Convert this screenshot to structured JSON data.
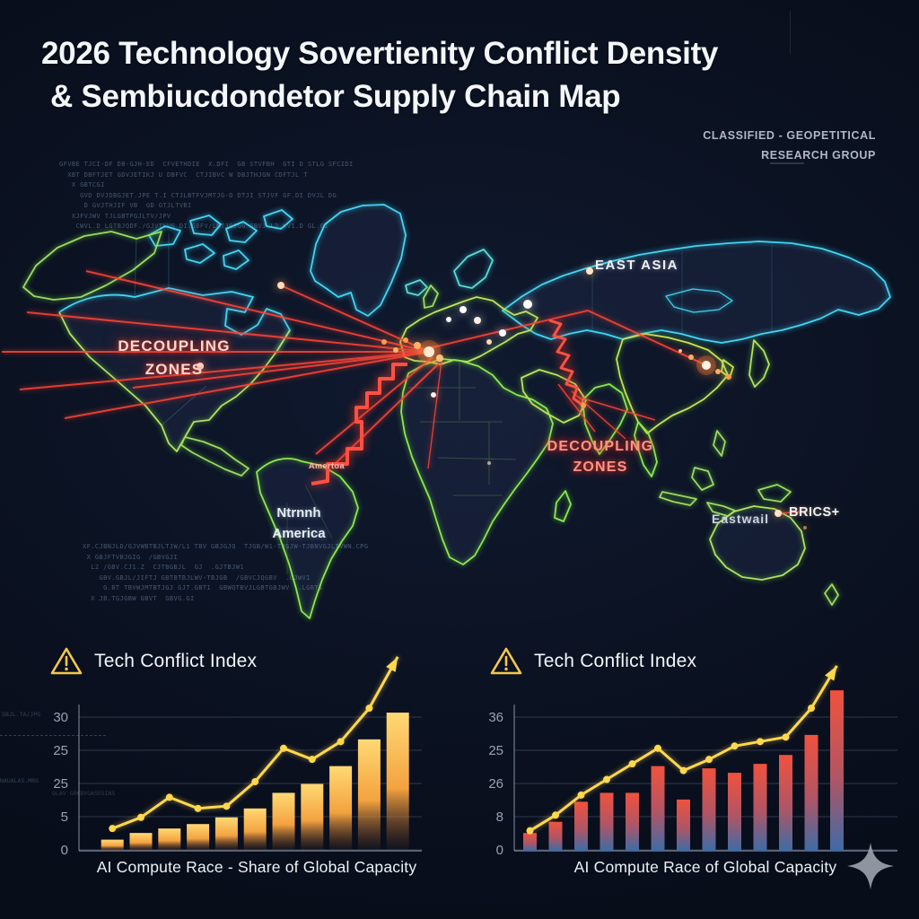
{
  "header": {
    "title_line1": "2026 Technology Sovertienity Conflict Density",
    "title_line2": "& Sembiucdondetor Supply Chain Map",
    "classification_line1": "CLASSIFIED - GEOPETITICAL",
    "classification_line2": "RESEARCH GROUP"
  },
  "map": {
    "labels": {
      "decoupling_west": {
        "line1": "DECOUPLING",
        "line2": "ZONES"
      },
      "decoupling_east": {
        "line1": "DECOUPLING",
        "line2": "ZONES"
      },
      "east_asia": {
        "line1": "EAST ASIA"
      },
      "brics": {
        "line1": "BRICS+"
      },
      "australia": {
        "line1": "Eastwail"
      },
      "south_america": {
        "line1": "Ntrnnh",
        "line2": "America"
      },
      "south_america_alt": {
        "line1": "Amertoa"
      }
    },
    "glitch_text_top": [
      "GFVBE TJCI-DF DB-GJH-ED  CFVETHDIE  X.DFI  GB STVFBH  GTI D STLG SFCIDI",
      "  XBT DBFTJET GDVJETIKJ U DBFVC  CTJIBVC W DBJTHJGN CDFTJL T",
      "   X GBTCGI",
      "     GVD DVJDBGJET.JPE T.I CTJLBTFVJMTJG-D DTJI STJVF GF.DI DVJL DG",
      "      D GVJTHJIF VB  GD GTJLTVBI",
      "",
      "   XJFVJWV TJLGBTFGJLTV/JPV",
      "    CWVL.D LGTBJQDF./GJVTLVG DI.GBFV/LMTJGJGG GBVJ.L2.WV1.D GL.GI"
    ],
    "glitch_text_bottom": [
      "XF.CJBNJLD/GJVWBTBJLTJW/L1 TBV GBJGJQ  TJGB/W1-TJGJW-TJBNVGJLTVWN.CPG",
      " X GBJFTVBJGIG  /GBVGJI",
      "  L2 /GBV.CJ1.Z  CJTBGBJL  GJ  .GJTBJW1",
      "    GBV.GBJL/JIFTJ GBTBTBJLWV-TBJGB  /GBVCJQGBV  .GJWV1",
      "     G.BT TBVWJMTBTJGJ GJT.GBT1  GBWQTBVJLGBTGBJWV  .LGBT1",
      "  X JB.TGJGBW GBVT  GBVG.GI"
    ],
    "glitch_text_side_a": "SBJL.TA/JPG",
    "glitch_text_side_b": "NAUALAS.MRS",
    "glitch_text_chart": "QLAV GRKBVGASESINS"
  },
  "chart_data": [
    {
      "type": "bar",
      "title": "Tech Conflict Index",
      "xlabel": "AI Compute Race - Share of Global Capacity",
      "icon": "warning-triangle",
      "ytick_labels": [
        "30",
        "25",
        "25",
        "5",
        "0"
      ],
      "ylim": [
        0,
        36
      ],
      "grid": true,
      "legend": null,
      "bar_values": [
        2.5,
        4,
        5,
        6,
        7.5,
        9.5,
        13,
        15,
        19,
        25,
        31
      ],
      "line_values": [
        5,
        7.5,
        12,
        9.5,
        10,
        15.5,
        23,
        20.5,
        24.5,
        32,
        43.5
      ],
      "arrow_extend": false,
      "bar_gradient": [
        "#ffd974",
        "#f3a23f",
        "rgba(140,80,45,0.05)"
      ],
      "line_color": "#ffd84d"
    },
    {
      "type": "bar",
      "title": "Tech Conflict Index",
      "xlabel": "AI Compute Race of Global Capacity",
      "icon": "warning-triangle",
      "ytick_labels": [
        "36",
        "25",
        "26",
        "8",
        "0"
      ],
      "ylim": [
        0,
        43
      ],
      "grid": true,
      "legend": null,
      "bar_values": [
        4,
        6.5,
        11,
        13,
        13,
        19,
        11.5,
        18.5,
        17.5,
        19.5,
        21.5,
        26,
        36
      ],
      "line_values": [
        4.5,
        8,
        12.5,
        16,
        19.5,
        23,
        18,
        20.5,
        23.5,
        24.5,
        25.5,
        32,
        41.5
      ],
      "arrow_extend": false,
      "bar_gradient": [
        "#f0523e",
        "#b05565",
        "#3d6ca6"
      ],
      "line_color": "#ffd84d"
    }
  ],
  "colors": {
    "accent_red": "#ff4538",
    "accent_yellow": "#ffd84d",
    "coast_cyan": "#45d4f1",
    "coast_green": "#8ee84f",
    "coast_yellow_green": "#b9dd66"
  }
}
